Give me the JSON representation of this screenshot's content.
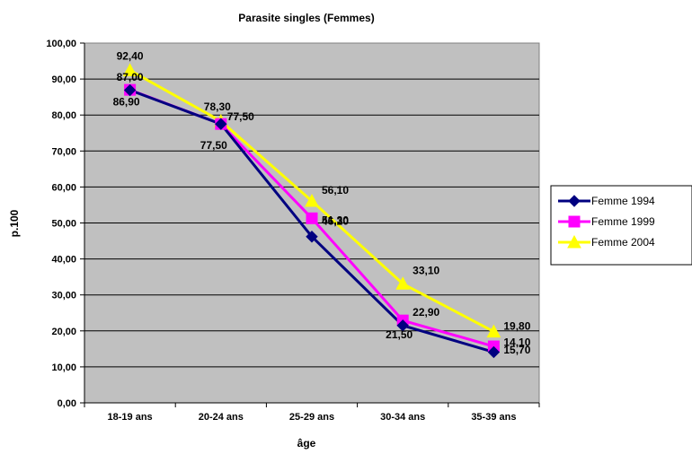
{
  "chart_data": {
    "type": "line",
    "title": "Parasite singles (Femmes)",
    "xlabel": "âge",
    "ylabel": "p.100",
    "categories": [
      "18-19 ans",
      "20-24 ans",
      "25-29 ans",
      "30-34 ans",
      "35-39 ans"
    ],
    "ylim": [
      0,
      100
    ],
    "ytick_labels": [
      "0,00",
      "10,00",
      "20,00",
      "30,00",
      "40,00",
      "50,00",
      "60,00",
      "70,00",
      "80,00",
      "90,00",
      "100,00"
    ],
    "grid": true,
    "legend_position": "right",
    "plot_background": "#c0c0c0",
    "series": [
      {
        "name": "Femme 1994",
        "color": "#000080",
        "marker": "diamond",
        "values": [
          86.9,
          77.5,
          46.2,
          21.5,
          14.1
        ],
        "labels": [
          "86,90",
          "77,50",
          "46,20",
          "21,50",
          "14,10"
        ]
      },
      {
        "name": "Femme 1999",
        "color": "#ff00ff",
        "marker": "square",
        "values": [
          87.0,
          77.5,
          51.3,
          22.9,
          15.7
        ],
        "labels": [
          "87,00",
          "77,50",
          "51,30",
          "22,90",
          "15,70"
        ]
      },
      {
        "name": "Femme 2004",
        "color": "#ffff00",
        "marker": "triangle",
        "values": [
          92.4,
          78.3,
          56.1,
          33.1,
          19.8
        ],
        "labels": [
          "92,40",
          "78,30",
          "56,10",
          "33,10",
          "19,80"
        ]
      }
    ]
  }
}
